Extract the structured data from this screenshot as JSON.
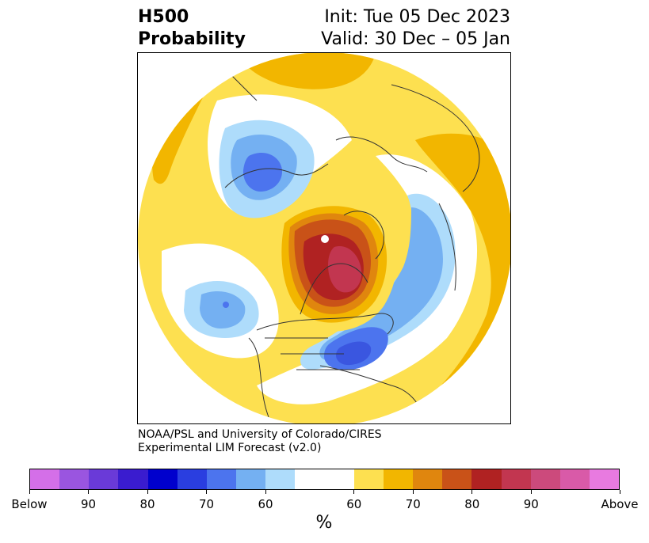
{
  "title": {
    "left_line1": "H500",
    "left_line2": "Probability",
    "right_line1": "Init: Tue 05 Dec 2023",
    "right_line2": "Valid: 30 Dec – 05 Jan"
  },
  "credit": {
    "line1": "NOAA/PSL and University of Colorado/CIRES",
    "line2": "Experimental LIM Forecast (v2.0)"
  },
  "colorbar": {
    "unit_label": "%",
    "colors": [
      "#d46fe8",
      "#9a55e0",
      "#6a3ad8",
      "#3a1ccf",
      "#0000cd",
      "#2a3ee0",
      "#4c74ee",
      "#74b0f2",
      "#aedcfb",
      "#ffffff",
      "#ffffff",
      "#fde050",
      "#f2b600",
      "#e0860e",
      "#c95218",
      "#b02222",
      "#c23650",
      "#cc4a7c",
      "#d95aa8",
      "#e87ae0"
    ],
    "tick_labels": [
      "Below",
      "90",
      "80",
      "70",
      "60",
      "60",
      "70",
      "80",
      "90",
      "Above"
    ]
  },
  "map": {
    "projection": "north-polar-stereographic",
    "colors": {
      "below_strong": "#3a56e0",
      "below_mid": "#74b0f2",
      "below_light": "#aedcfb",
      "above_light": "#fde050",
      "above_mid": "#f2b600",
      "above_orange": "#e0860e",
      "above_deep": "#c95218",
      "above_red": "#b02222",
      "above_pink": "#c23650",
      "coastline": "#333333"
    }
  }
}
